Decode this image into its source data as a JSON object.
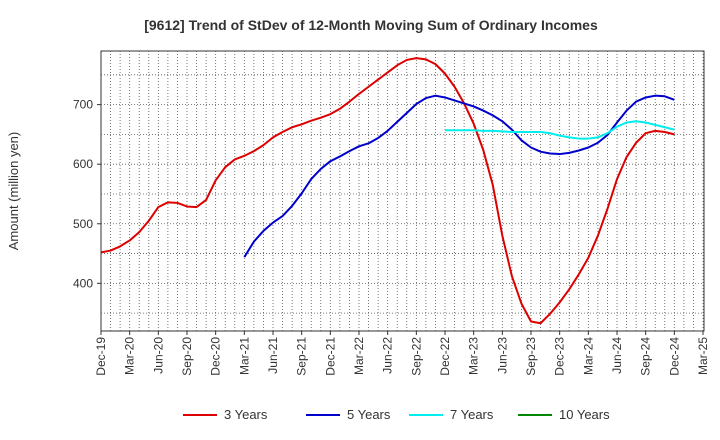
{
  "chart_data": {
    "type": "line",
    "title": "[9612]  Trend of StDev of 12-Month Moving Sum of Ordinary Incomes",
    "xlabel": "",
    "ylabel": "Amount (million yen)",
    "ylim": [
      320,
      790
    ],
    "yticks": [
      400,
      500,
      600,
      700
    ],
    "grid": true,
    "legend_position": "bottom",
    "x_tick_labels": [
      "Dec-19",
      "Mar-20",
      "Jun-20",
      "Sep-20",
      "Dec-20",
      "Mar-21",
      "Jun-21",
      "Sep-21",
      "Dec-21",
      "Mar-22",
      "Jun-22",
      "Sep-22",
      "Dec-22",
      "Mar-23",
      "Jun-23",
      "Sep-23",
      "Dec-23",
      "Mar-24",
      "Jun-24",
      "Sep-24",
      "Dec-24",
      "Mar-25"
    ],
    "x_months": [
      "Dec-19",
      "Jan-20",
      "Feb-20",
      "Mar-20",
      "Apr-20",
      "May-20",
      "Jun-20",
      "Jul-20",
      "Aug-20",
      "Sep-20",
      "Oct-20",
      "Nov-20",
      "Dec-20",
      "Jan-21",
      "Feb-21",
      "Mar-21",
      "Apr-21",
      "May-21",
      "Jun-21",
      "Jul-21",
      "Aug-21",
      "Sep-21",
      "Oct-21",
      "Nov-21",
      "Dec-21",
      "Jan-22",
      "Feb-22",
      "Mar-22",
      "Apr-22",
      "May-22",
      "Jun-22",
      "Jul-22",
      "Aug-22",
      "Sep-22",
      "Oct-22",
      "Nov-22",
      "Dec-22",
      "Jan-23",
      "Feb-23",
      "Mar-23",
      "Apr-23",
      "May-23",
      "Jun-23",
      "Jul-23",
      "Aug-23",
      "Sep-23",
      "Oct-23",
      "Nov-23",
      "Dec-23",
      "Jan-24",
      "Feb-24",
      "Mar-24",
      "Apr-24",
      "May-24",
      "Jun-24",
      "Jul-24",
      "Aug-24",
      "Sep-24",
      "Oct-24",
      "Nov-24",
      "Dec-24"
    ],
    "series": [
      {
        "name": "3 Years",
        "color": "#dd0000",
        "values": [
          452,
          455,
          462,
          472,
          486,
          505,
          528,
          536,
          535,
          529,
          528,
          540,
          573,
          595,
          608,
          614,
          622,
          632,
          645,
          654,
          662,
          667,
          673,
          678,
          684,
          693,
          705,
          718,
          730,
          742,
          754,
          766,
          775,
          778,
          776,
          768,
          752,
          730,
          702,
          668,
          624,
          565,
          480,
          412,
          366,
          336,
          333,
          349,
          368,
          390,
          415,
          443,
          480,
          525,
          575,
          612,
          636,
          652,
          656,
          654,
          650
        ],
        "start_index": 0
      },
      {
        "name": "5 Years",
        "color": "#0000cc",
        "values": [
          444,
          470,
          488,
          502,
          513,
          530,
          551,
          575,
          592,
          605,
          613,
          622,
          630,
          635,
          644,
          656,
          671,
          686,
          701,
          711,
          715,
          712,
          707,
          702,
          697,
          690,
          682,
          672,
          658,
          640,
          628,
          621,
          618,
          617,
          619,
          623,
          628,
          636,
          649,
          670,
          690,
          705,
          712,
          715,
          714,
          708
        ],
        "start_index": 15
      },
      {
        "name": "7 Years",
        "color": "#00eeee",
        "values": [
          657,
          657,
          657,
          657,
          656,
          656,
          655,
          654,
          654,
          654,
          654,
          652,
          648,
          645,
          643,
          643,
          645,
          652,
          663,
          670,
          672,
          670,
          666,
          662,
          658
        ],
        "start_index": 36
      },
      {
        "name": "10 Years",
        "color": "#008800",
        "values": [],
        "start_index": 0
      }
    ]
  }
}
